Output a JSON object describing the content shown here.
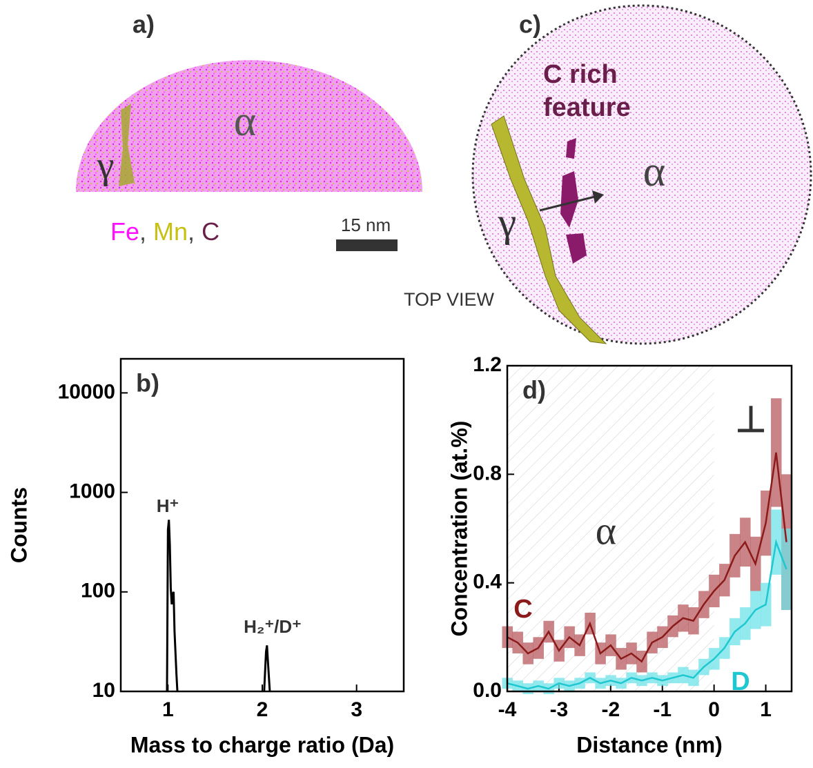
{
  "panel_a": {
    "label": "a)",
    "phase_alpha": "α",
    "phase_gamma": "γ",
    "legend": [
      "Fe",
      ", ",
      "Mn",
      ", ",
      "C"
    ],
    "scale_bar": "15 nm"
  },
  "panel_c": {
    "label": "c)",
    "feature_lines": [
      "C rich",
      "feature"
    ],
    "phase_alpha": "α",
    "phase_gamma": "γ",
    "view": "TOP VIEW"
  },
  "chart_data": [
    {
      "type": "line",
      "panel_label": "b)",
      "xlabel": "Mass to charge ratio (Da)",
      "ylabel": "Counts",
      "log_y": true,
      "xlim": [
        0.5,
        3.5
      ],
      "xticks": [
        1,
        2,
        3
      ],
      "ylim": [
        10,
        22000
      ],
      "yticks": [
        10,
        100,
        1000,
        10000
      ],
      "annotations": [
        "H⁺",
        "H₂⁺/D⁺"
      ],
      "series": [
        {
          "name": "Counts",
          "color": "#000000",
          "x": [
            0.99,
            1.0,
            1.01,
            1.02,
            1.03,
            1.04,
            1.05,
            1.06,
            1.07,
            1.09,
            1.1,
            1.5,
            2.02,
            2.04,
            2.05,
            2.06,
            2.08
          ],
          "values": [
            10,
            420,
            530,
            300,
            110,
            75,
            95,
            100,
            40,
            15,
            10,
            null,
            10,
            25,
            29,
            20,
            10
          ]
        }
      ]
    },
    {
      "type": "band-line",
      "panel_label": "d)",
      "xlabel": "Distance (nm)",
      "ylabel": "Concentration (at.%)",
      "xlim": [
        -4,
        1.5
      ],
      "xticks": [
        -4,
        -3,
        -2,
        -1,
        0,
        1
      ],
      "ylim": [
        0,
        1.2
      ],
      "yticks": [
        {
          "value": 0,
          "label": "0.0"
        },
        0.4,
        0.8,
        1.2
      ],
      "hatched_xrange": [
        -4,
        0
      ],
      "annotations": [
        "α",
        "⊥"
      ],
      "x": [
        -4.0,
        -3.8,
        -3.6,
        -3.4,
        -3.2,
        -3.0,
        -2.8,
        -2.6,
        -2.4,
        -2.2,
        -2.0,
        -1.8,
        -1.6,
        -1.4,
        -1.2,
        -1.0,
        -0.8,
        -0.6,
        -0.4,
        -0.2,
        0.0,
        0.2,
        0.4,
        0.6,
        0.8,
        1.0,
        1.2,
        1.4
      ],
      "series": [
        {
          "name": "C",
          "color": "#8b1a1a",
          "band_color": "#b8595d",
          "values": [
            0.2,
            0.18,
            0.14,
            0.16,
            0.22,
            0.15,
            0.2,
            0.17,
            0.25,
            0.14,
            0.17,
            0.12,
            0.14,
            0.11,
            0.18,
            0.2,
            0.24,
            0.27,
            0.26,
            0.32,
            0.37,
            0.41,
            0.5,
            0.55,
            0.47,
            0.62,
            0.88,
            0.55
          ],
          "errors": [
            0.04,
            0.04,
            0.04,
            0.04,
            0.04,
            0.04,
            0.04,
            0.04,
            0.04,
            0.04,
            0.04,
            0.04,
            0.04,
            0.04,
            0.04,
            0.04,
            0.04,
            0.05,
            0.05,
            0.05,
            0.06,
            0.06,
            0.08,
            0.09,
            0.1,
            0.12,
            0.2,
            0.25
          ]
        },
        {
          "name": "D",
          "color": "#1fc8d0",
          "band_color": "#6fe3e8",
          "values": [
            0.03,
            0.02,
            0.01,
            0.02,
            0.01,
            0.03,
            0.02,
            0.03,
            0.05,
            0.03,
            0.04,
            0.03,
            0.05,
            0.04,
            0.05,
            0.04,
            0.05,
            0.06,
            0.05,
            0.09,
            0.12,
            0.16,
            0.22,
            0.25,
            0.3,
            0.32,
            0.55,
            0.45
          ],
          "errors": [
            0.02,
            0.02,
            0.02,
            0.02,
            0.02,
            0.02,
            0.02,
            0.02,
            0.02,
            0.02,
            0.02,
            0.02,
            0.02,
            0.02,
            0.02,
            0.02,
            0.02,
            0.03,
            0.03,
            0.03,
            0.04,
            0.04,
            0.05,
            0.06,
            0.07,
            0.08,
            0.12,
            0.15
          ]
        }
      ]
    }
  ]
}
